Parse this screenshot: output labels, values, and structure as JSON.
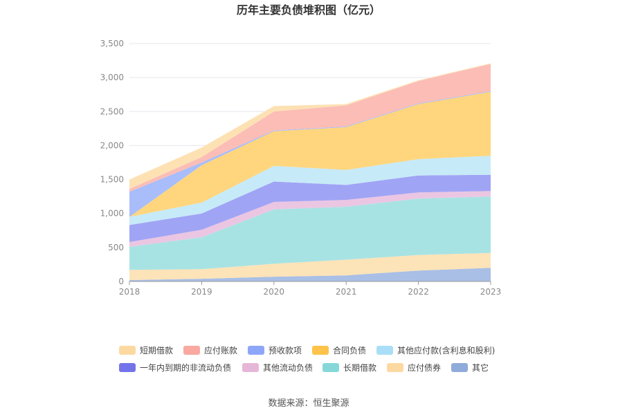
{
  "title": "历年主要负债堆积图（亿元）",
  "source": "数据来源：恒生聚源",
  "chart_data": {
    "type": "area",
    "stacked": true,
    "title": "历年主要负债堆积图（亿元）",
    "x": [
      "2018",
      "2019",
      "2020",
      "2021",
      "2022",
      "2023"
    ],
    "yticks": [
      "0",
      "500",
      "1,000",
      "1,500",
      "2,000",
      "2,500",
      "3,000",
      "3,500"
    ],
    "ylim": [
      0,
      3500
    ],
    "grid": true,
    "legend_position": "bottom",
    "series": [
      {
        "name": "其它",
        "color": "#a9bfe6",
        "values": [
          20,
          40,
          70,
          90,
          160,
          200
        ]
      },
      {
        "name": "应付债券",
        "color": "#fde3b8",
        "values": [
          150,
          140,
          190,
          230,
          230,
          220
        ]
      },
      {
        "name": "长期借款",
        "color": "#a8e3e3",
        "values": [
          340,
          470,
          800,
          780,
          830,
          830
        ]
      },
      {
        "name": "其他流动负债",
        "color": "#ebc6e2",
        "values": [
          70,
          110,
          110,
          100,
          90,
          80
        ]
      },
      {
        "name": "一年内到期的非流动负债",
        "color": "#a0a4f5",
        "values": [
          250,
          240,
          300,
          220,
          250,
          240
        ]
      },
      {
        "name": "其他应付款(含利息和股利)",
        "color": "#c6eaf8",
        "values": [
          120,
          160,
          230,
          220,
          240,
          280
        ]
      },
      {
        "name": "合同负债",
        "color": "#ffd67d",
        "values": [
          0,
          550,
          510,
          630,
          810,
          940
        ]
      },
      {
        "name": "预收款项",
        "color": "#a8bdfa",
        "values": [
          370,
          40,
          10,
          10,
          10,
          10
        ]
      },
      {
        "name": "应付账款",
        "color": "#fbbdb6",
        "values": [
          40,
          80,
          280,
          310,
          330,
          400
        ]
      },
      {
        "name": "短期借款",
        "color": "#fde1b3",
        "values": [
          140,
          140,
          80,
          20,
          10,
          10
        ]
      }
    ]
  },
  "legend": [
    {
      "name": "短期借款",
      "color": "#fdd9a2"
    },
    {
      "name": "应付账款",
      "color": "#f9a9a0"
    },
    {
      "name": "预收款项",
      "color": "#8ea6f8"
    },
    {
      "name": "合同负债",
      "color": "#fec34a"
    },
    {
      "name": "其他应付款(含利息和股利)",
      "color": "#aadef6"
    },
    {
      "name": "一年内到期的非流动负债",
      "color": "#7474ea"
    },
    {
      "name": "其他流动负债",
      "color": "#e6b6d8"
    },
    {
      "name": "长期借款",
      "color": "#86d8d8"
    },
    {
      "name": "应付债券",
      "color": "#fdd9a2"
    },
    {
      "name": "其它",
      "color": "#8fabd9"
    }
  ]
}
